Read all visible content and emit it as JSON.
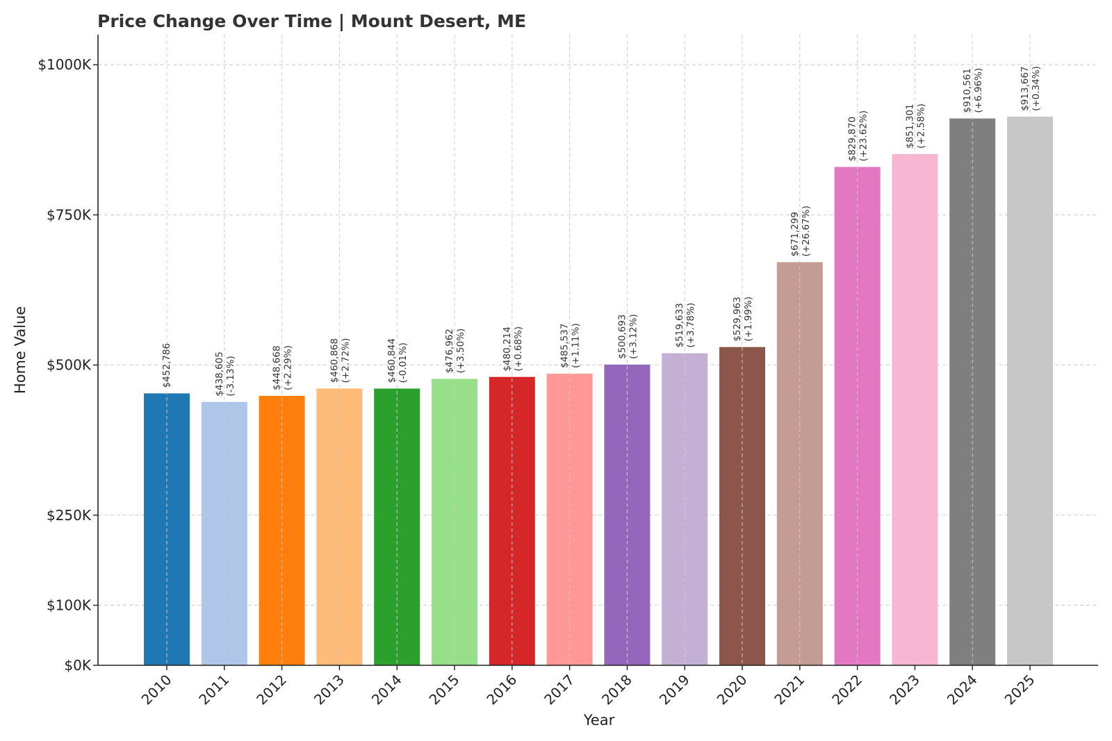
{
  "chart_data": {
    "type": "bar",
    "title": "Price Change Over Time | Mount Desert, ME",
    "xlabel": "Year",
    "ylabel": "Home Value",
    "ylim": [
      0,
      1050000
    ],
    "yticks": [
      0,
      100000,
      250000,
      500000,
      750000,
      1000000
    ],
    "ytick_labels": [
      "$0K",
      "$100K",
      "$250K",
      "$500K",
      "$750K",
      "$1000K"
    ],
    "grid": true,
    "categories": [
      "2010",
      "2011",
      "2012",
      "2013",
      "2014",
      "2015",
      "2016",
      "2017",
      "2018",
      "2019",
      "2020",
      "2021",
      "2022",
      "2023",
      "2024",
      "2025"
    ],
    "values": [
      452786,
      438605,
      448668,
      460868,
      460844,
      476962,
      480214,
      485537,
      500693,
      519633,
      529963,
      671299,
      829870,
      851301,
      910561,
      913667
    ],
    "value_labels": [
      "$452,786",
      "$438,605",
      "$448,668",
      "$460,868",
      "$460,844",
      "$476,962",
      "$480,214",
      "$485,537",
      "$500,693",
      "$519,633",
      "$529,963",
      "$671,299",
      "$829,870",
      "$851,301",
      "$910,561",
      "$913,667"
    ],
    "change_labels": [
      "",
      "(-3.13%)",
      "(+2.29%)",
      "(+2.72%)",
      "(-0.01%)",
      "(+3.50%)",
      "(+0.68%)",
      "(+1.11%)",
      "(+3.12%)",
      "(+3.78%)",
      "(+1.99%)",
      "(+26.67%)",
      "(+23.62%)",
      "(+2.58%)",
      "(+6.96%)",
      "(+0.34%)"
    ],
    "colors": [
      "#1f77b4",
      "#aec7e8",
      "#ff7f0e",
      "#ffbb78",
      "#2ca02c",
      "#98df8a",
      "#d62728",
      "#ff9896",
      "#9467bd",
      "#c5b0d5",
      "#8c564b",
      "#c49c94",
      "#e377c2",
      "#f7b6d2",
      "#7f7f7f",
      "#c7c7c7"
    ]
  }
}
